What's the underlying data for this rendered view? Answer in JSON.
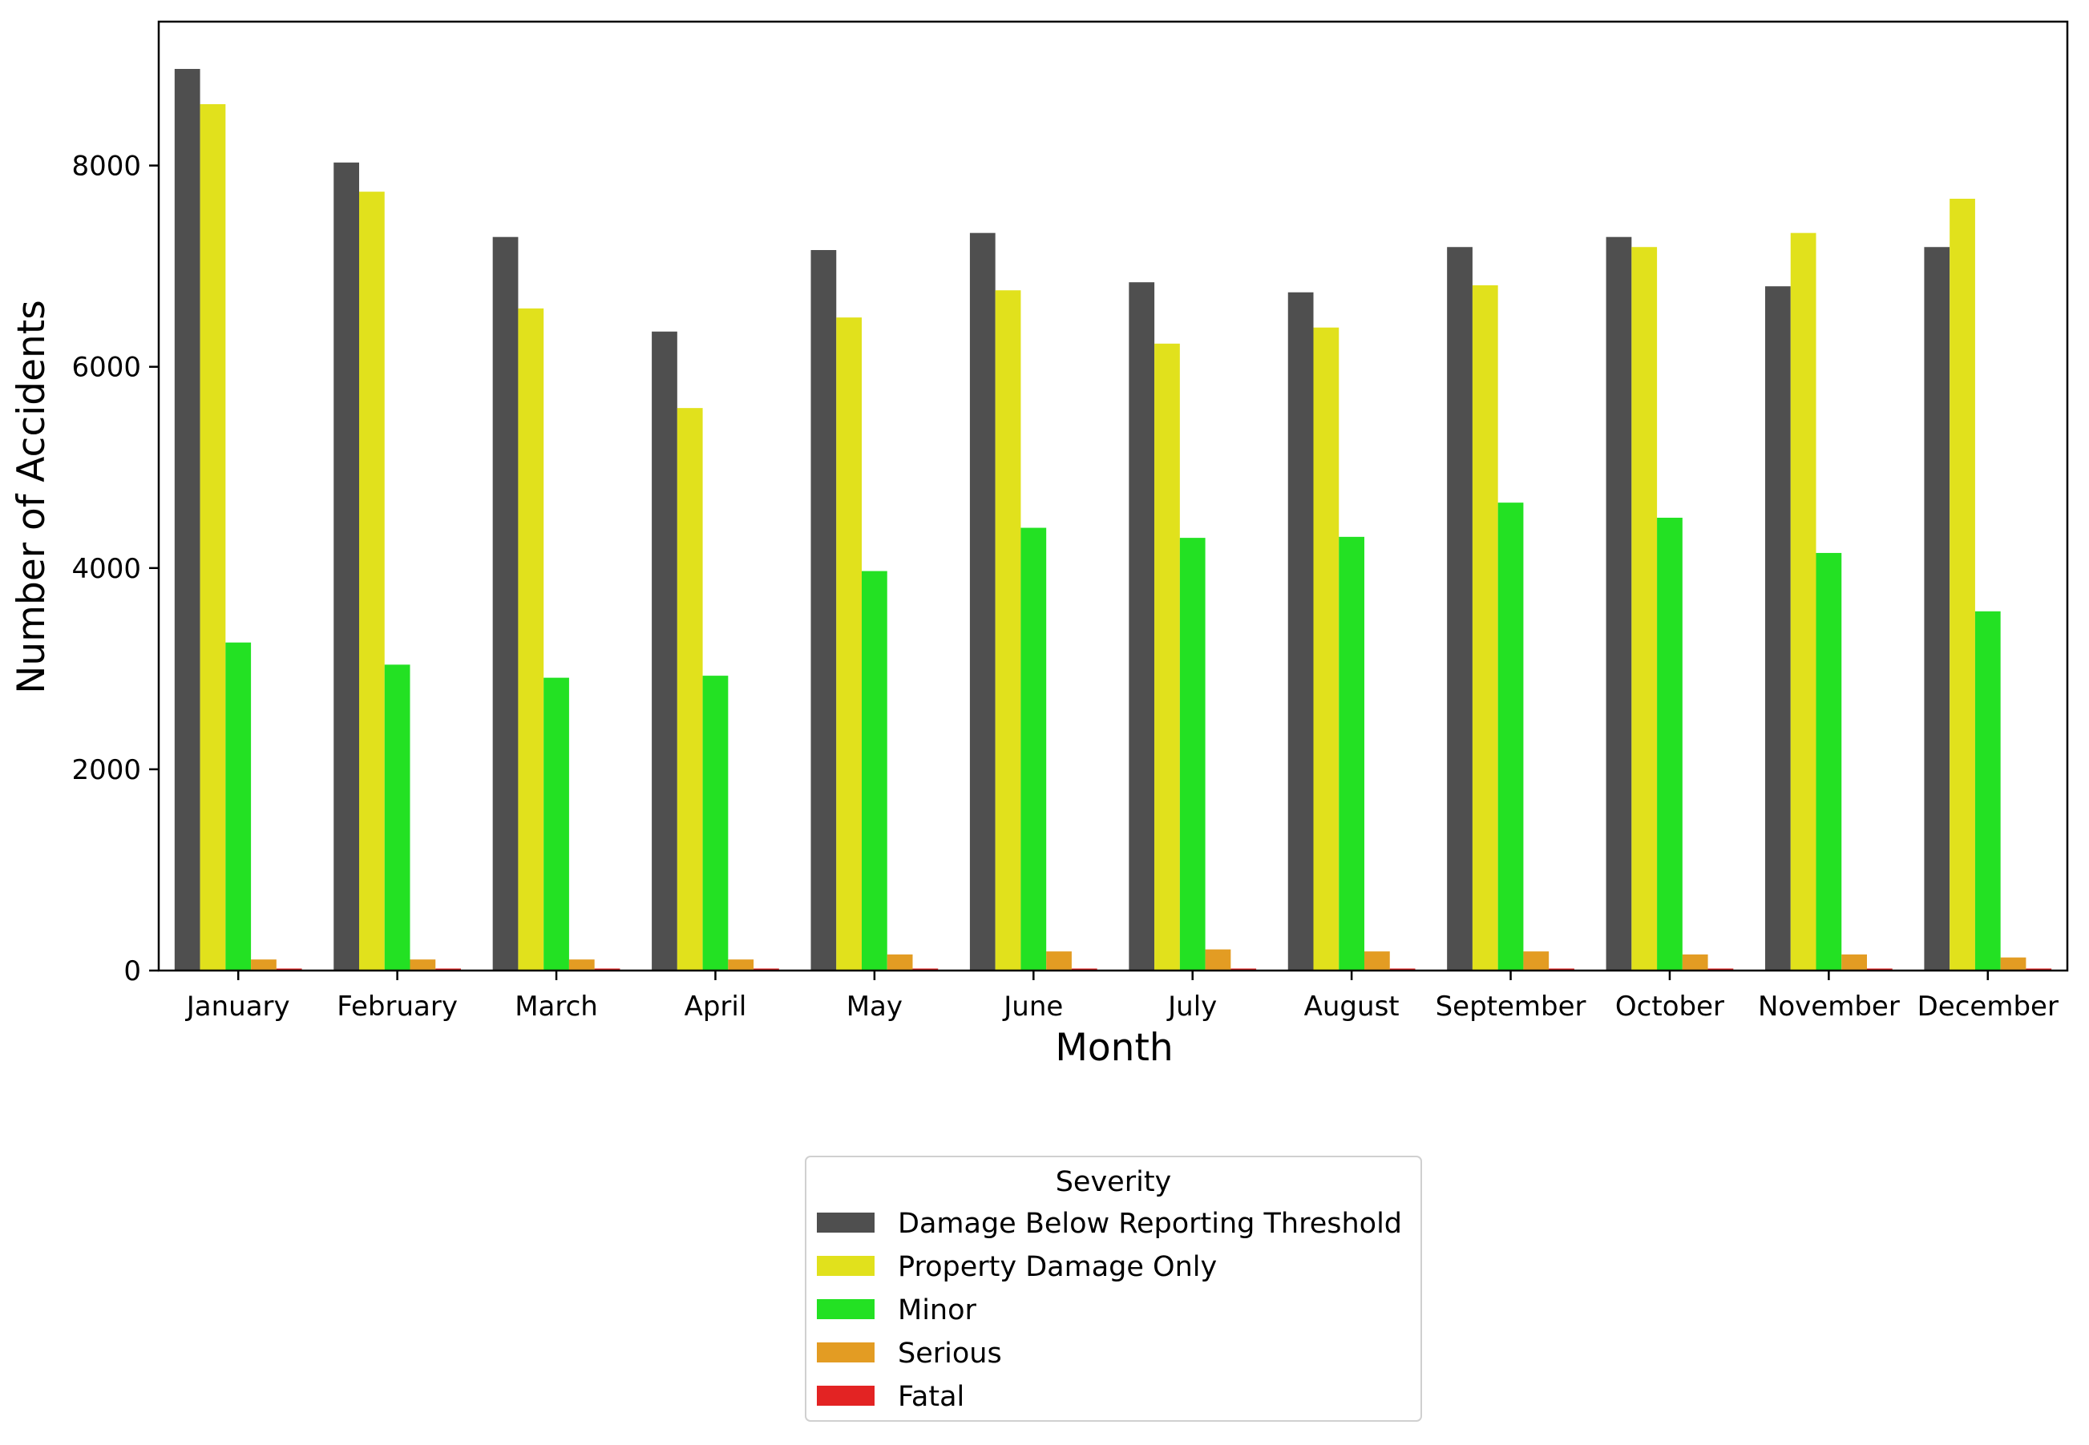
{
  "chart_data": {
    "type": "bar",
    "title": "",
    "xlabel": "Month",
    "ylabel": "Number of Accidents",
    "ylim": [
      0,
      9430
    ],
    "yticks": [
      0,
      2000,
      4000,
      6000,
      8000
    ],
    "grid": false,
    "legend_position": "below",
    "legend_title": "Severity",
    "categories": [
      "January",
      "February",
      "March",
      "April",
      "May",
      "June",
      "July",
      "August",
      "September",
      "October",
      "November",
      "December"
    ],
    "series": [
      {
        "name": "Damage Below Reporting Threshold",
        "color": "#4f4f4f",
        "values": [
          8960,
          8030,
          7290,
          6350,
          7160,
          7330,
          6840,
          6740,
          7190,
          7290,
          6800,
          7190
        ]
      },
      {
        "name": "Property Damage Only",
        "color": "#e1e11c",
        "values": [
          8610,
          7740,
          6580,
          5590,
          6490,
          6760,
          6230,
          6390,
          6810,
          7190,
          7330,
          7670
        ]
      },
      {
        "name": "Minor",
        "color": "#23e123",
        "values": [
          3260,
          3040,
          2910,
          2930,
          3970,
          4400,
          4300,
          4310,
          4650,
          4500,
          4150,
          3570
        ]
      },
      {
        "name": "Serious",
        "color": "#e39c23",
        "values": [
          110,
          110,
          110,
          110,
          160,
          190,
          210,
          190,
          190,
          160,
          160,
          130
        ]
      },
      {
        "name": "Fatal",
        "color": "#e32323",
        "values": [
          20,
          20,
          20,
          20,
          20,
          20,
          20,
          20,
          20,
          20,
          20,
          20
        ]
      }
    ]
  }
}
